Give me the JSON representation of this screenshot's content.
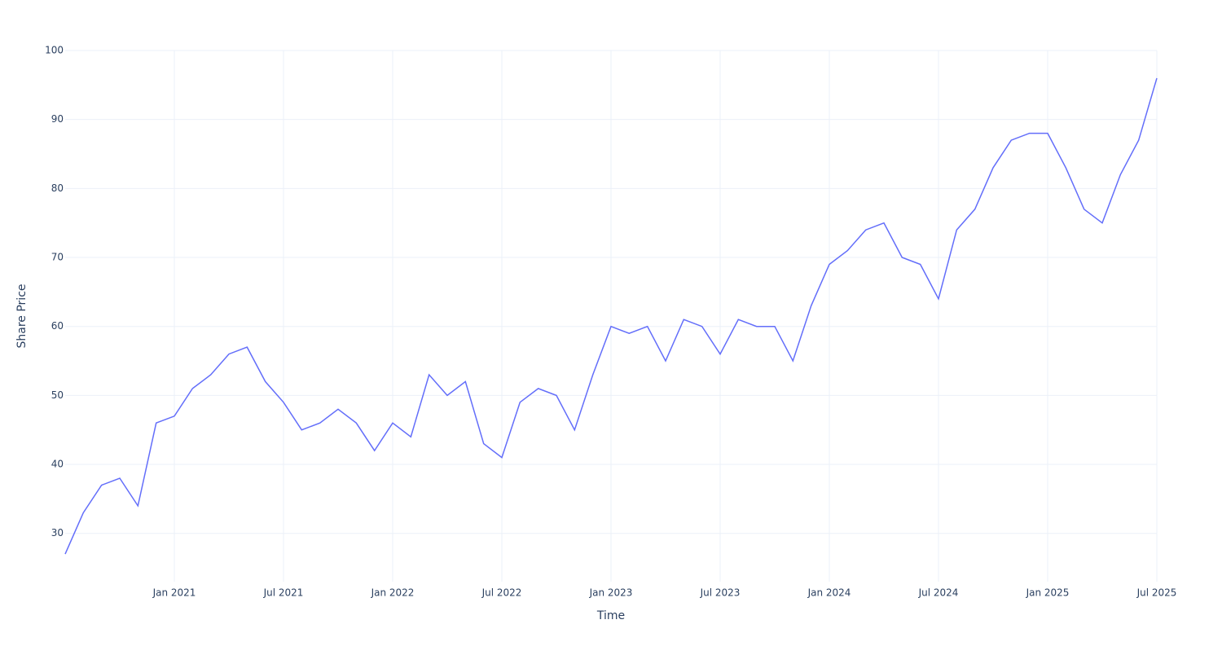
{
  "chart_data": {
    "type": "line",
    "x_label": "Time",
    "y_label": "Share Price",
    "x": [
      "2020-07",
      "2020-08",
      "2020-09",
      "2020-10",
      "2020-11",
      "2020-12",
      "2021-01",
      "2021-02",
      "2021-03",
      "2021-04",
      "2021-05",
      "2021-06",
      "2021-07",
      "2021-08",
      "2021-09",
      "2021-10",
      "2021-11",
      "2021-12",
      "2022-01",
      "2022-02",
      "2022-03",
      "2022-04",
      "2022-05",
      "2022-06",
      "2022-07",
      "2022-08",
      "2022-09",
      "2022-10",
      "2022-11",
      "2022-12",
      "2023-01",
      "2023-02",
      "2023-03",
      "2023-04",
      "2023-05",
      "2023-06",
      "2023-07",
      "2023-08",
      "2023-09",
      "2023-10",
      "2023-11",
      "2023-12",
      "2024-01",
      "2024-02",
      "2024-03",
      "2024-04",
      "2024-05",
      "2024-06",
      "2024-07",
      "2024-08",
      "2024-09",
      "2024-10",
      "2024-11",
      "2024-12",
      "2025-01",
      "2025-02",
      "2025-03",
      "2025-04",
      "2025-05",
      "2025-06",
      "2025-07"
    ],
    "series": [
      {
        "name": "Share Price",
        "color": "#636efa",
        "values": [
          27,
          33,
          37,
          38,
          34,
          46,
          47,
          51,
          53,
          56,
          57,
          52,
          49,
          45,
          46,
          48,
          46,
          42,
          46,
          44,
          53,
          50,
          52,
          43,
          41,
          49,
          51,
          50,
          45,
          53,
          60,
          59,
          60,
          55,
          61,
          60,
          56,
          61,
          60,
          60,
          55,
          63,
          69,
          71,
          74,
          75,
          70,
          69,
          64,
          74,
          77,
          83,
          87,
          88,
          88,
          83,
          77,
          75,
          82,
          87,
          96
        ]
      }
    ],
    "xlim": [
      "2020-07",
      "2025-07"
    ],
    "xticks": [
      {
        "value": "2021-01",
        "label": "Jan 2021"
      },
      {
        "value": "2021-07",
        "label": "Jul 2021"
      },
      {
        "value": "2022-01",
        "label": "Jan 2022"
      },
      {
        "value": "2022-07",
        "label": "Jul 2022"
      },
      {
        "value": "2023-01",
        "label": "Jan 2023"
      },
      {
        "value": "2023-07",
        "label": "Jul 2023"
      },
      {
        "value": "2024-01",
        "label": "Jan 2024"
      },
      {
        "value": "2024-07",
        "label": "Jul 2024"
      },
      {
        "value": "2025-01",
        "label": "Jan 2025"
      },
      {
        "value": "2025-07",
        "label": "Jul 2025"
      }
    ],
    "ylim": [
      23,
      100
    ],
    "yticks": [
      30,
      40,
      50,
      60,
      70,
      80,
      90,
      100
    ],
    "grid": true
  }
}
